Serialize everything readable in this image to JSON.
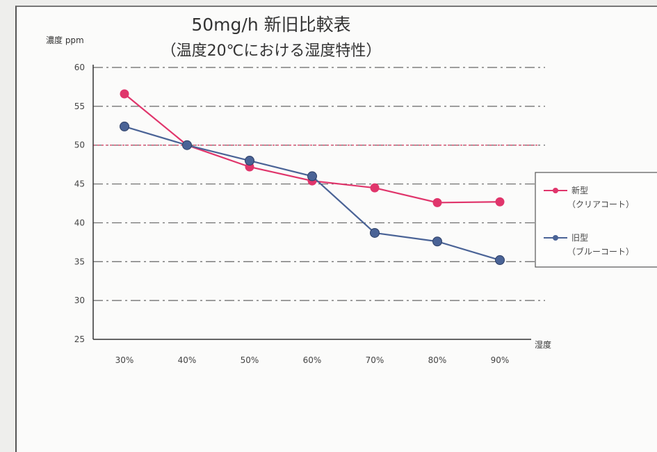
{
  "chart_data": {
    "type": "line",
    "title": "50mg/h 新旧比較表",
    "subtitle": "（温度20℃における湿度特性）",
    "ylabel": "濃度 ppm",
    "xlabel": "湿度",
    "categories": [
      "30%",
      "40%",
      "50%",
      "60%",
      "70%",
      "80%",
      "90%"
    ],
    "ylim": [
      25,
      60
    ],
    "yticks": [
      60,
      55,
      50,
      45,
      40,
      35,
      30,
      25
    ],
    "grid": true,
    "legend_position": "right",
    "series": [
      {
        "name": "新型",
        "name_sub": "（クリアコート）",
        "color": "#e0356b",
        "values": [
          56.6,
          50.0,
          47.2,
          45.4,
          44.5,
          42.6,
          42.7
        ]
      },
      {
        "name": "旧型",
        "name_sub": "（ブルーコート）",
        "color": "#4a6396",
        "values": [
          52.4,
          50.0,
          48.0,
          46.0,
          38.7,
          37.6,
          35.2
        ]
      }
    ],
    "reference_line": {
      "value": 50,
      "color": "#d94a6a"
    }
  }
}
